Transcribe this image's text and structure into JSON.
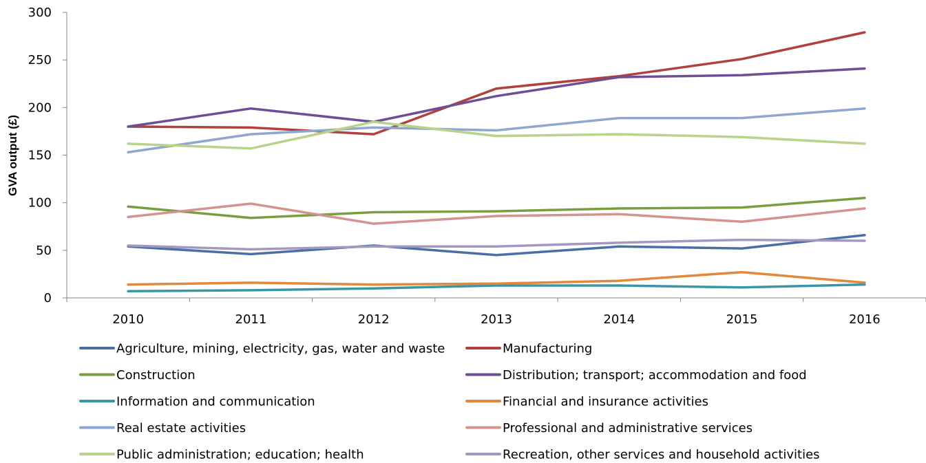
{
  "chart_data": {
    "type": "line",
    "title": "",
    "xlabel": "",
    "ylabel": "GVA output (£)",
    "ylim": [
      0,
      300
    ],
    "yticks": [
      0,
      50,
      100,
      150,
      200,
      250,
      300
    ],
    "grid": false,
    "legend_position": "bottom",
    "x": [
      "2010",
      "2011",
      "2012",
      "2013",
      "2014",
      "2015",
      "2016"
    ],
    "series": [
      {
        "name": "Agriculture, mining, electricity, gas, water and waste",
        "color": "#4a6fa5",
        "values": [
          54,
          46,
          55,
          45,
          54,
          52,
          66
        ]
      },
      {
        "name": "Manufacturing",
        "color": "#b1413e",
        "values": [
          180,
          179,
          172,
          220,
          233,
          251,
          279
        ]
      },
      {
        "name": "Construction",
        "color": "#7a9e3f",
        "values": [
          96,
          84,
          90,
          91,
          94,
          95,
          105
        ]
      },
      {
        "name": "Distribution; transport; accommodation and food",
        "color": "#6e4e94",
        "values": [
          180,
          199,
          185,
          212,
          232,
          234,
          241
        ]
      },
      {
        "name": "Information and communication",
        "color": "#3797a7",
        "values": [
          7,
          8,
          10,
          13,
          13,
          11,
          14
        ]
      },
      {
        "name": "Financial and insurance activities",
        "color": "#e3873a",
        "values": [
          14,
          16,
          14,
          15,
          18,
          27,
          16
        ]
      },
      {
        "name": "Real estate activities",
        "color": "#8ea6d0",
        "values": [
          153,
          172,
          179,
          176,
          189,
          189,
          199
        ]
      },
      {
        "name": "Professional and administrative services",
        "color": "#d39391",
        "values": [
          85,
          99,
          78,
          86,
          88,
          80,
          94
        ]
      },
      {
        "name": "Public administration; education; health",
        "color": "#b9d38c",
        "values": [
          162,
          157,
          185,
          170,
          172,
          169,
          162
        ]
      },
      {
        "name": "Recreation, other services and household activities",
        "color": "#a497c0",
        "values": [
          55,
          51,
          54,
          54,
          58,
          61,
          60
        ]
      }
    ]
  }
}
